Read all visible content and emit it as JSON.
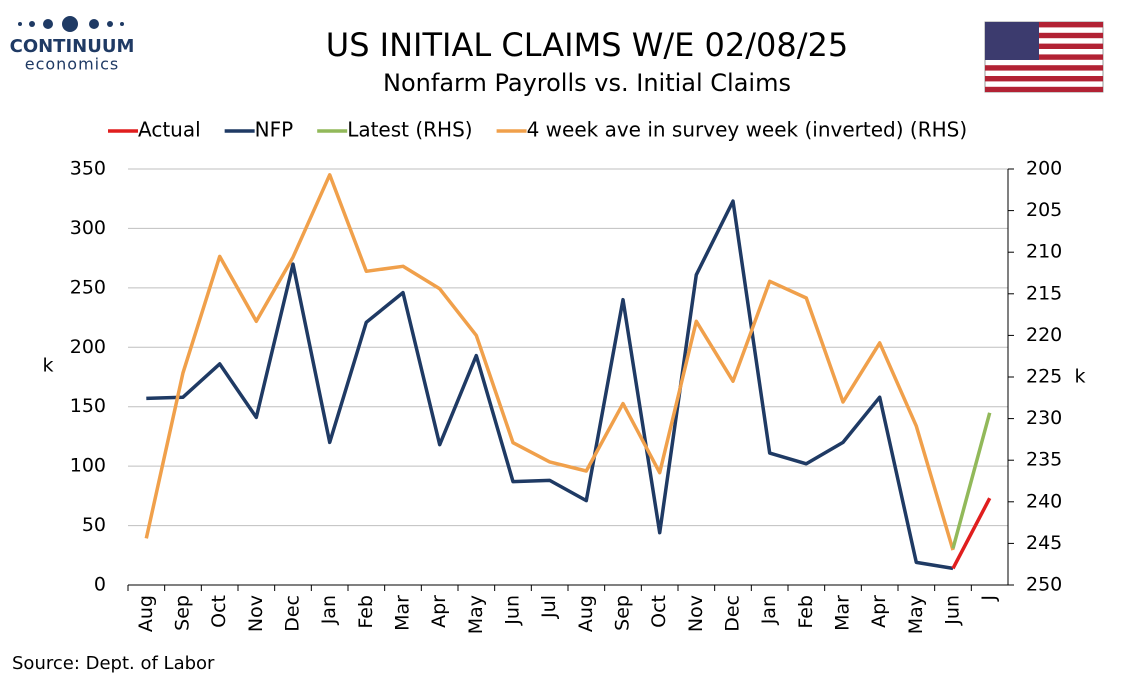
{
  "logo": {
    "name": "CONTINUUM",
    "tagline": "economics"
  },
  "source": "Source: Dept. of Labor",
  "chart_data": {
    "type": "line",
    "title": "US INITIAL CLAIMS W/E 02/08/25",
    "subtitle": "Nonfarm Payrolls vs. Initial Claims",
    "ylabel": "k",
    "y2label": "k",
    "categories": [
      "Aug",
      "Sep",
      "Oct",
      "Nov",
      "Dec",
      "Jan",
      "Feb",
      "Mar",
      "Apr",
      "May",
      "Jun",
      "Jul",
      "Aug",
      "Sep",
      "Oct",
      "Nov",
      "Dec",
      "Jan",
      "Feb",
      "Mar",
      "Apr",
      "May",
      "Jun",
      "J"
    ],
    "ylim": [
      0,
      350
    ],
    "yticks": [
      0,
      50,
      100,
      150,
      200,
      250,
      300,
      350
    ],
    "y2lim": [
      200,
      250
    ],
    "y2_inverted": true,
    "y2ticks": [
      200,
      205,
      210,
      215,
      220,
      225,
      230,
      235,
      240,
      245,
      250
    ],
    "grid": true,
    "legend": "top",
    "series": [
      {
        "name": "Actual",
        "color": "#e01e1e",
        "values": [
          null,
          null,
          null,
          null,
          null,
          null,
          null,
          null,
          null,
          null,
          null,
          null,
          null,
          null,
          null,
          null,
          null,
          null,
          null,
          null,
          null,
          null,
          14,
          73
        ]
      },
      {
        "name": "NFP",
        "color": "#1f3a64",
        "values": [
          157,
          158,
          186,
          141,
          270,
          120,
          221,
          246,
          118,
          193,
          87,
          88,
          71,
          240,
          44,
          261,
          323,
          111,
          102,
          120,
          158,
          19,
          14,
          null
        ]
      },
      {
        "name": "Latest (RHS)",
        "color": "#92b95a",
        "axis": "y2",
        "values": [
          null,
          null,
          null,
          null,
          null,
          null,
          null,
          null,
          null,
          null,
          null,
          null,
          null,
          null,
          null,
          null,
          null,
          null,
          null,
          null,
          null,
          null,
          245.6,
          229.3
        ]
      },
      {
        "name": "4 week ave in survey week (inverted) (RHS)",
        "color": "#f0a04b",
        "axis": "y2",
        "values": [
          244.4,
          224.5,
          210.5,
          218.3,
          210.6,
          200.7,
          212.3,
          211.7,
          214.4,
          220.0,
          232.9,
          235.2,
          236.3,
          228.2,
          236.5,
          218.3,
          225.5,
          213.5,
          215.5,
          228.0,
          220.9,
          230.9,
          245.8,
          null
        ]
      }
    ]
  }
}
